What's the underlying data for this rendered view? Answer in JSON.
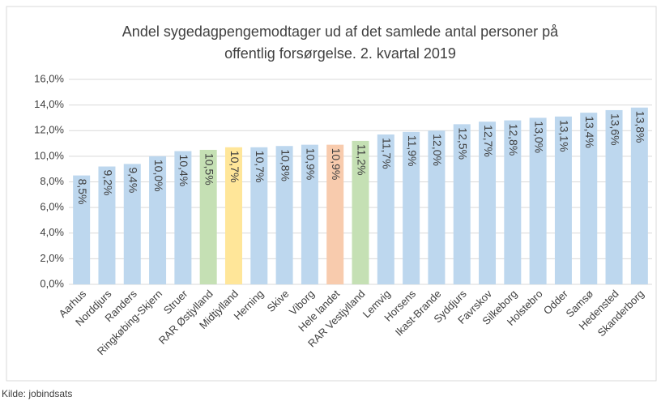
{
  "chart_data": {
    "type": "bar",
    "title": [
      "Andel sygedagpengemodtager ud af det samlede antal personer på",
      "offentlig forsørgelse. 2. kvartal 2019"
    ],
    "source": "Kilde: jobindsats",
    "categories": [
      "Aarhus",
      "Norddjurs",
      "Randers",
      "Ringkøbing-Skjern",
      "Struer",
      "RAR Østjylland",
      "Midtjylland",
      "Herning",
      "Skive",
      "Viborg",
      "Hele landet",
      "RAR Vestjylland",
      "Lemvig",
      "Horsens",
      "Ikast-Brande",
      "Syddjurs",
      "Favrskov",
      "Silkeborg",
      "Holstebro",
      "Odder",
      "Samsø",
      "Hedensted",
      "Skanderborg"
    ],
    "values": [
      8.5,
      9.2,
      9.4,
      10.0,
      10.4,
      10.5,
      10.7,
      10.7,
      10.8,
      10.9,
      10.9,
      11.2,
      11.7,
      11.9,
      12.0,
      12.5,
      12.7,
      12.8,
      13.0,
      13.1,
      13.4,
      13.6,
      13.8
    ],
    "value_labels": [
      "8,5%",
      "9,2%",
      "9,4%",
      "10,0%",
      "10,4%",
      "10,5%",
      "10,7%",
      "10,7%",
      "10,8%",
      "10,9%",
      "10,9%",
      "11,2%",
      "11,7%",
      "11,9%",
      "12,0%",
      "12,5%",
      "12,7%",
      "12,8%",
      "13,0%",
      "13,1%",
      "13,4%",
      "13,6%",
      "13,8%"
    ],
    "colors": [
      "#bdd7ee",
      "#bdd7ee",
      "#bdd7ee",
      "#bdd7ee",
      "#bdd7ee",
      "#c5e0b4",
      "#ffe699",
      "#bdd7ee",
      "#bdd7ee",
      "#bdd7ee",
      "#f8cbad",
      "#c5e0b4",
      "#bdd7ee",
      "#bdd7ee",
      "#bdd7ee",
      "#bdd7ee",
      "#bdd7ee",
      "#bdd7ee",
      "#bdd7ee",
      "#bdd7ee",
      "#bdd7ee",
      "#bdd7ee",
      "#bdd7ee"
    ],
    "ylim": [
      0,
      16
    ],
    "yticks": [
      {
        "value": 0,
        "label": "0,0%"
      },
      {
        "value": 2,
        "label": "2,0%"
      },
      {
        "value": 4,
        "label": "4,0%"
      },
      {
        "value": 6,
        "label": "6,0%"
      },
      {
        "value": 8,
        "label": "8,0%"
      },
      {
        "value": 10,
        "label": "10,0%"
      },
      {
        "value": 12,
        "label": "12,0%"
      },
      {
        "value": 14,
        "label": "14,0%"
      },
      {
        "value": 16,
        "label": "16,0%"
      }
    ],
    "grid": true
  }
}
